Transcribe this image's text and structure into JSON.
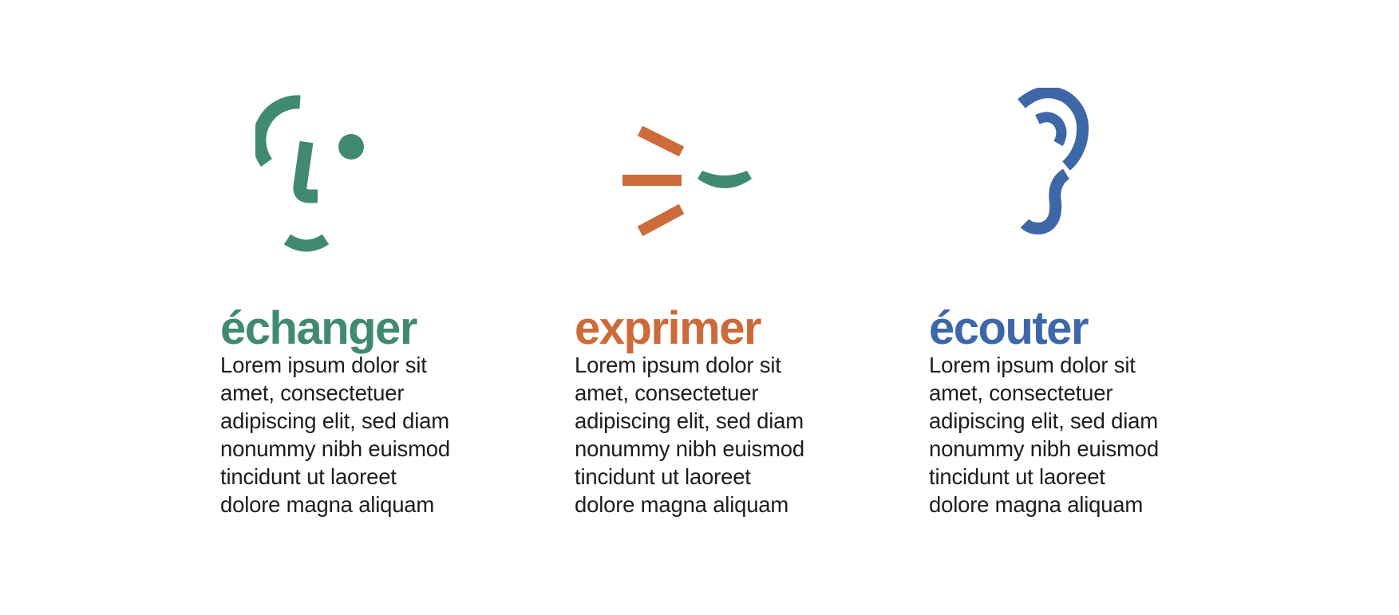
{
  "colors": {
    "green": "#3f8a70",
    "orange": "#cc6a3a",
    "blue": "#3e67a8",
    "text": "#1d1d1b",
    "background": "#ffffff"
  },
  "features": [
    {
      "title": "échanger",
      "icon": "face-profile-icon",
      "body": "Lorem ipsum dolor sit\namet, consectetuer\nadipiscing elit, sed diam\nnonummy nibh euismod\ntincidunt ut laoreet\ndolore magna aliquam"
    },
    {
      "title": "exprimer",
      "icon": "speaking-mouth-icon",
      "body": "Lorem ipsum dolor sit\namet, consectetuer\nadipiscing elit, sed diam\nnonummy nibh euismod\ntincidunt ut laoreet\ndolore magna aliquam"
    },
    {
      "title": "écouter",
      "icon": "ear-icon",
      "body": "Lorem ipsum dolor sit\namet, consectetuer\nadipiscing elit, sed diam\nnonummy nibh euismod\ntincidunt ut laoreet\ndolore magna aliquam"
    }
  ]
}
